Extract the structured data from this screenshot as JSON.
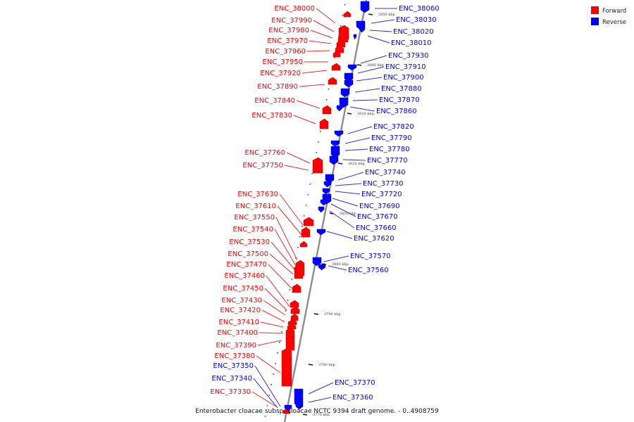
{
  "caption": "Enterobacter cloacae subsp. cloacae NCTC 9394 draft genome. - 0..4908759",
  "legend": [
    {
      "label": "Forward",
      "color": "#ff0000"
    },
    {
      "label": "Reverse",
      "color": "#0000ff"
    }
  ],
  "colors": {
    "forward": "#ff0000",
    "reverse": "#0000ff",
    "backbone": "#8c8c8c",
    "forward_line": "#e03030",
    "reverse_line": "#3030e0"
  },
  "scale_ticks": [
    "3850 kbp",
    "3840 kbp",
    "3830 kbp",
    "3820 kbp",
    "3810 kbp",
    "3800 kbp",
    "3790 kbp",
    "3780 kbp",
    "3770 kbp"
  ],
  "forward_genes": [
    "ENC_38000",
    "ENC_37990",
    "ENC_37980",
    "ENC_37970",
    "ENC_37960",
    "ENC_37950",
    "ENC_37920",
    "ENC_37890",
    "ENC_37840",
    "ENC_37830",
    "ENC_37760",
    "ENC_37750",
    "ENC_37630",
    "ENC_37610",
    "ENC_37550",
    "ENC_37540",
    "ENC_37530",
    "ENC_37500",
    "ENC_37470",
    "ENC_37460",
    "ENC_37450",
    "ENC_37430",
    "ENC_37420",
    "ENC_37410",
    "ENC_37400",
    "ENC_37390",
    "ENC_37380",
    "ENC_37330"
  ],
  "reverse_genes": [
    "ENC_38060",
    "ENC_38030",
    "ENC_38020",
    "ENC_38010",
    "ENC_37930",
    "ENC_37910",
    "ENC_37900",
    "ENC_37880",
    "ENC_37870",
    "ENC_37860",
    "ENC_37820",
    "ENC_37790",
    "ENC_37780",
    "ENC_37770",
    "ENC_37740",
    "ENC_37730",
    "ENC_37720",
    "ENC_37690",
    "ENC_37670",
    "ENC_37660",
    "ENC_37620",
    "ENC_37570",
    "ENC_37560",
    "ENC_37370",
    "ENC_37360",
    "ENC_37350",
    "ENC_37340"
  ]
}
